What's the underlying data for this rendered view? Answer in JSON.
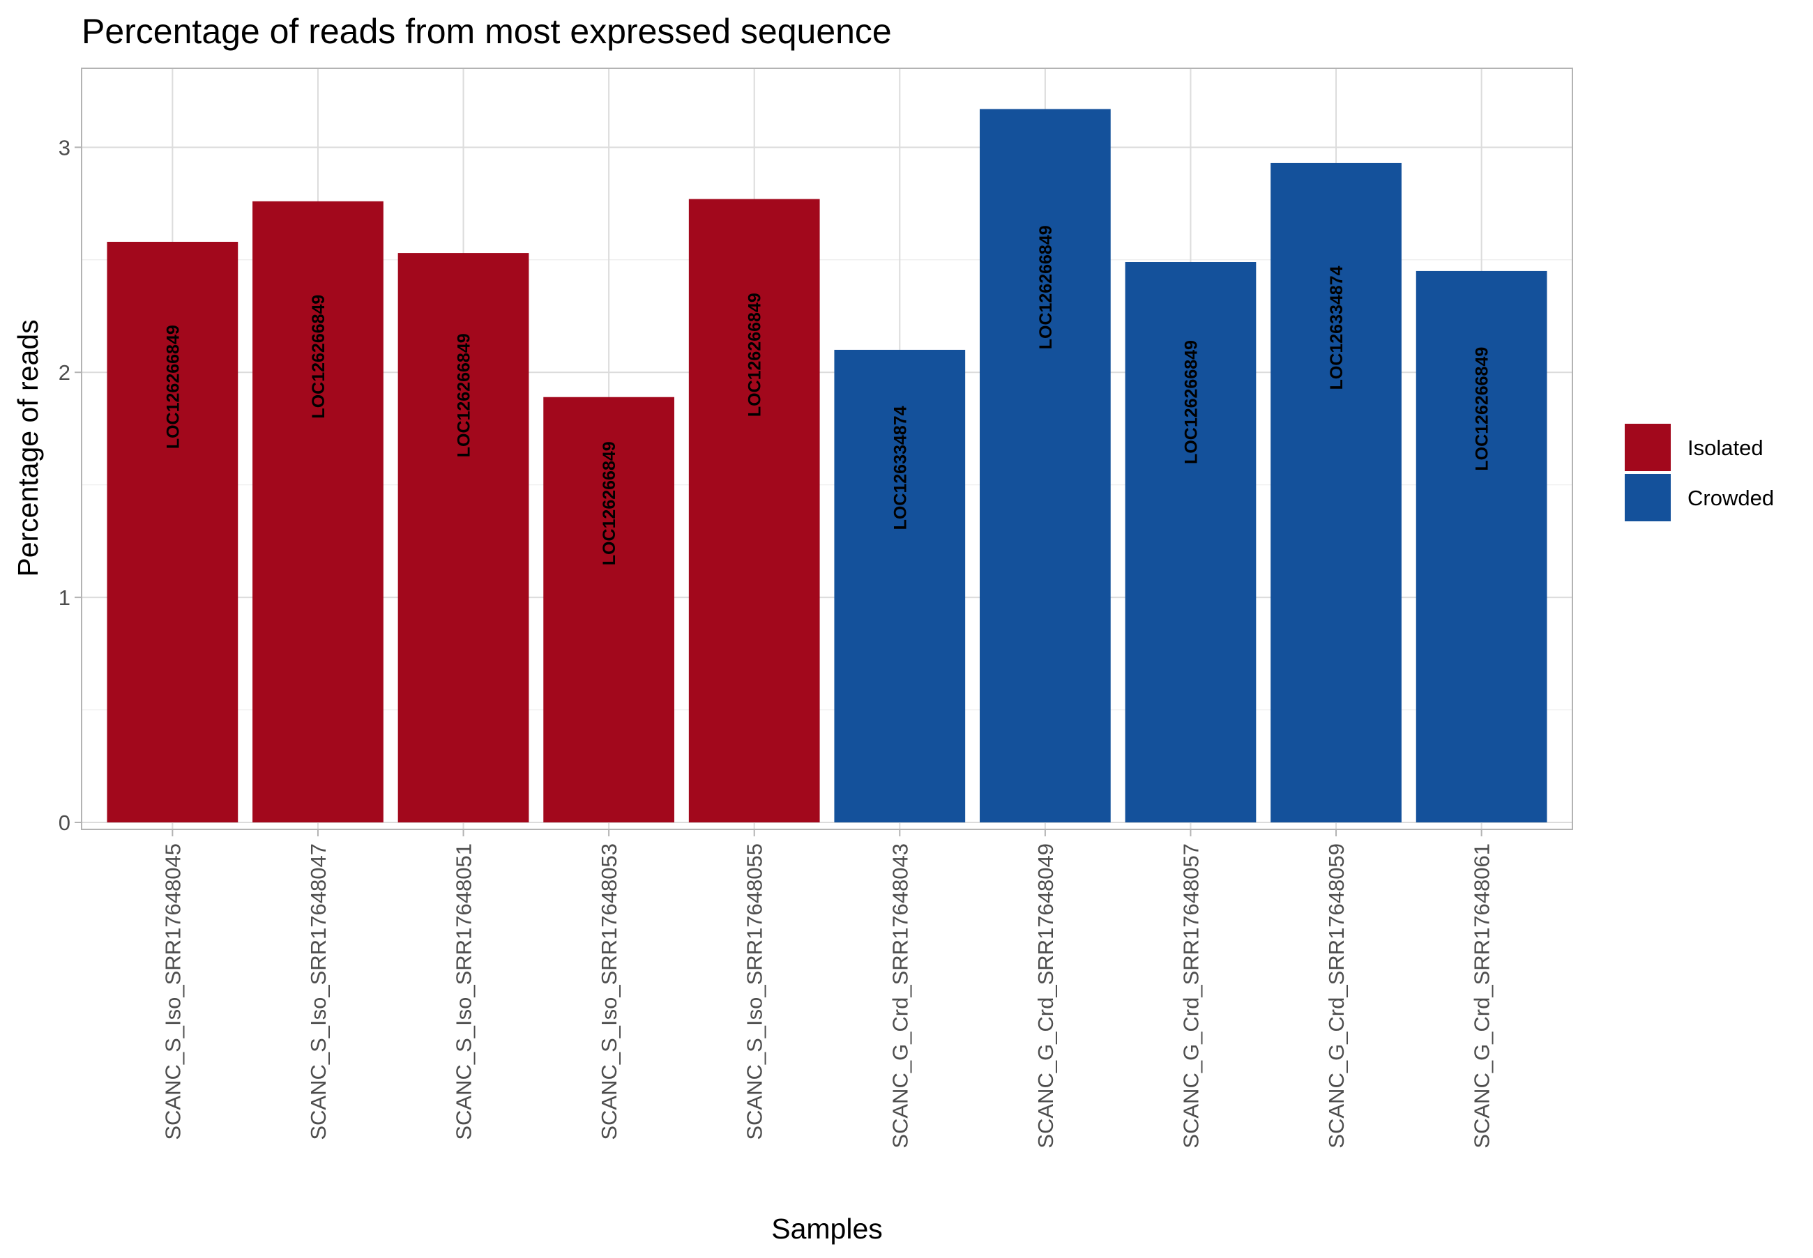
{
  "chart_data": {
    "type": "bar",
    "title": "Percentage of reads from most expressed sequence",
    "xlabel": "Samples",
    "ylabel": "Percentage of reads",
    "ylim": [
      0,
      3.32
    ],
    "yticks": [
      0,
      1,
      2,
      3
    ],
    "grid": true,
    "legend_position": "right",
    "categories": [
      "SCANC_S_Iso_SRR17648045",
      "SCANC_S_Iso_SRR17648047",
      "SCANC_S_Iso_SRR17648051",
      "SCANC_S_Iso_SRR17648053",
      "SCANC_S_Iso_SRR17648055",
      "SCANC_G_Crd_SRR17648043",
      "SCANC_G_Crd_SRR17648049",
      "SCANC_G_Crd_SRR17648057",
      "SCANC_G_Crd_SRR17648059",
      "SCANC_G_Crd_SRR17648061"
    ],
    "values": [
      2.58,
      2.76,
      2.53,
      1.89,
      2.77,
      2.1,
      3.17,
      2.49,
      2.93,
      2.45
    ],
    "bar_labels": [
      "LOC126266849",
      "LOC126266849",
      "LOC126266849",
      "LOC126266849",
      "LOC126266849",
      "LOC126334874",
      "LOC126266849",
      "LOC126266849",
      "LOC126334874",
      "LOC126266849"
    ],
    "groups": [
      "Isolated",
      "Isolated",
      "Isolated",
      "Isolated",
      "Isolated",
      "Crowded",
      "Crowded",
      "Crowded",
      "Crowded",
      "Crowded"
    ],
    "legend": [
      {
        "name": "Isolated",
        "color": "#a2081c"
      },
      {
        "name": "Crowded",
        "color": "#14519b"
      }
    ]
  }
}
